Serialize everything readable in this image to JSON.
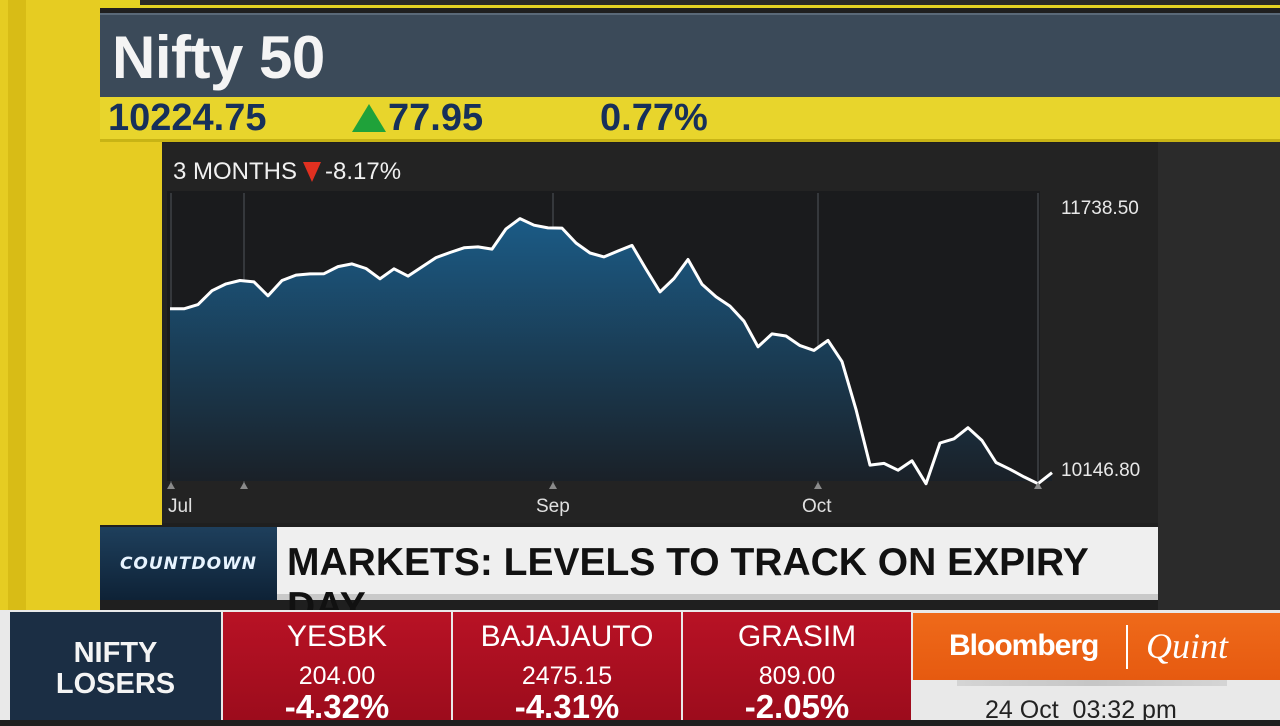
{
  "index": {
    "title": "Nifty 50",
    "price": "10224.75",
    "change": "77.95",
    "change_pct": "0.77%",
    "direction": "up"
  },
  "chart": {
    "range_label": "3 MONTHS",
    "range_change": "-8.17%",
    "range_direction": "down"
  },
  "chart_data": {
    "type": "area",
    "x_tick_labels": [
      "Jul",
      "Sep",
      "Oct"
    ],
    "y_max_label": "11738.50",
    "y_min_label": "10146.80",
    "ylim": [
      10146.8,
      11738.5
    ],
    "values": [
      11092,
      11091,
      11116,
      11198,
      11238,
      11258,
      11250,
      11168,
      11258,
      11290,
      11297,
      11298,
      11340,
      11356,
      11329,
      11268,
      11327,
      11284,
      11338,
      11393,
      11423,
      11451,
      11456,
      11443,
      11562,
      11623,
      11584,
      11568,
      11567,
      11479,
      11420,
      11397,
      11432,
      11465,
      11325,
      11191,
      11270,
      11382,
      11236,
      11162,
      11107,
      11018,
      10867,
      10943,
      10931,
      10874,
      10846,
      10905,
      10780,
      10498,
      10170,
      10180,
      10140,
      10195,
      10060,
      10300,
      10325,
      10390,
      10315,
      10185,
      10145,
      10100,
      10060,
      10125
    ],
    "grid_vertical_lines": true,
    "color_line": "#ffffff",
    "color_fill_top": "#1b5b86",
    "color_fill_bottom": "#1a2027"
  },
  "headline": {
    "program": "COUNTDOWN",
    "text": "MARKETS: LEVELS TO TRACK ON EXPIRY DAY"
  },
  "ticker": {
    "label_line1": "NIFTY",
    "label_line2": "LOSERS",
    "stocks": [
      {
        "name": "YESBK",
        "price": "204.00",
        "change": "-4.32%"
      },
      {
        "name": "BAJAJAUTO",
        "price": "2475.15",
        "change": "-4.31%"
      },
      {
        "name": "GRASIM",
        "price": "809.00",
        "change": "-2.05%"
      }
    ]
  },
  "brand": {
    "left": "Bloomberg",
    "right": "Quint"
  },
  "datetime": "24 Oct  03:32 pm",
  "colors": {
    "accent_yellow": "#e6cc22",
    "title_bar": "#3b4a59",
    "loser_red": "#b81225",
    "brand_orange": "#ef6a1a",
    "up_green": "#1fa23a",
    "down_red": "#e03020"
  }
}
